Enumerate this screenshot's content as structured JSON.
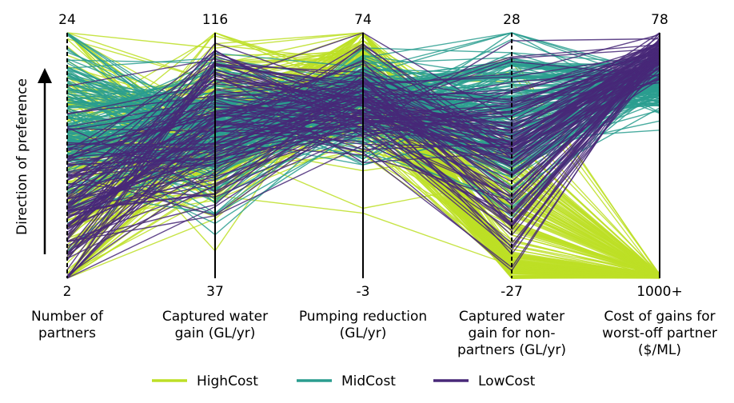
{
  "chart_data": {
    "type": "parallel_coordinates",
    "title": "",
    "axes": [
      {
        "label_lines": [
          "Number of",
          "partners"
        ],
        "top": "24",
        "bottom": "2",
        "bottom_value": 2,
        "top_value": 24
      },
      {
        "label_lines": [
          "Captured water",
          "gain (GL/yr)"
        ],
        "top": "116",
        "bottom": "37",
        "bottom_value": 37,
        "top_value": 116
      },
      {
        "label_lines": [
          "Pumping reduction",
          "(GL/yr)"
        ],
        "top": "74",
        "bottom": "-3",
        "bottom_value": -3,
        "top_value": 74
      },
      {
        "label_lines": [
          "Captured water",
          "gain for non-",
          "partners (GL/yr)"
        ],
        "top": "28",
        "bottom": "-27",
        "bottom_value": -27,
        "top_value": 28
      },
      {
        "label_lines": [
          "Cost of gains for",
          "worst-off partner",
          "($/ML)"
        ],
        "top": "78",
        "bottom": "1000+",
        "bottom_value": 1000,
        "top_value": 78
      }
    ],
    "preference_label": "Direction of preference",
    "legend_position": "bottom-center",
    "series": [
      {
        "name": "HighCost",
        "color": "#bddf26",
        "profile_fraction": [
          [
            0.5,
            0.35
          ],
          [
            0.6,
            0.2
          ],
          [
            0.8,
            0.15
          ],
          [
            0.3,
            0.25
          ],
          [
            0.01,
            0.01
          ]
        ]
      },
      {
        "name": "MidCost",
        "color": "#2a9d8f",
        "profile_fraction": [
          [
            0.62,
            0.2
          ],
          [
            0.6,
            0.18
          ],
          [
            0.73,
            0.12
          ],
          [
            0.65,
            0.2
          ],
          [
            0.8,
            0.06
          ]
        ]
      },
      {
        "name": "LowCost",
        "color": "#482878",
        "profile_fraction": [
          [
            0.3,
            0.22
          ],
          [
            0.65,
            0.2
          ],
          [
            0.72,
            0.12
          ],
          [
            0.55,
            0.25
          ],
          [
            0.91,
            0.05
          ]
        ]
      }
    ],
    "lines_per_series": [
      200,
      180,
      110
    ],
    "random_seed": 12345
  }
}
